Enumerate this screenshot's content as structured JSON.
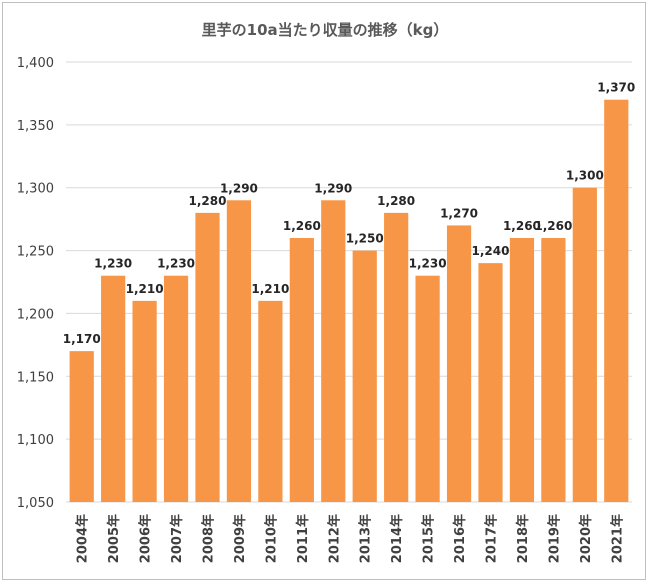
{
  "chart_data": {
    "type": "bar",
    "title": "里芋の10a当たり収量の推移（kg）",
    "categories": [
      "2004年",
      "2005年",
      "2006年",
      "2007年",
      "2008年",
      "2009年",
      "2010年",
      "2011年",
      "2012年",
      "2013年",
      "2014年",
      "2015年",
      "2016年",
      "2017年",
      "2018年",
      "2019年",
      "2020年",
      "2021年"
    ],
    "values": [
      1170,
      1230,
      1210,
      1230,
      1280,
      1290,
      1210,
      1260,
      1290,
      1250,
      1280,
      1230,
      1270,
      1240,
      1260,
      1260,
      1300,
      1370
    ],
    "value_labels": [
      "1,170",
      "1,230",
      "1,210",
      "1,230",
      "1,280",
      "1,290",
      "1,210",
      "1,260",
      "1,290",
      "1,250",
      "1,280",
      "1,230",
      "1,270",
      "1,240",
      "1,260",
      "1,260",
      "1,300",
      "1,370"
    ],
    "yticks": [
      1050,
      1100,
      1150,
      1200,
      1250,
      1300,
      1350,
      1400
    ],
    "ytick_labels": [
      "1,050",
      "1,100",
      "1,150",
      "1,200",
      "1,250",
      "1,300",
      "1,350",
      "1,400"
    ],
    "ylim": [
      1050,
      1400
    ],
    "xlabel": "",
    "ylabel": "",
    "grid": true,
    "legend": "none",
    "bar_color": "#f79646"
  }
}
